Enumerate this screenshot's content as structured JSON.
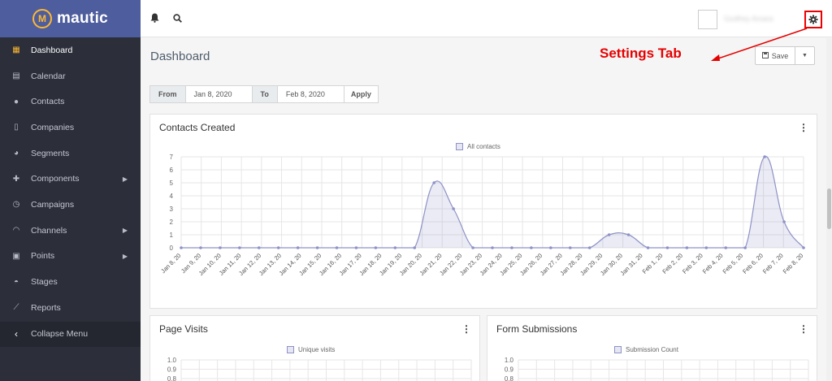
{
  "brand": {
    "name": "mautic"
  },
  "sidebar": {
    "items": [
      {
        "label": "Dashboard",
        "icon": "dashboard-icon",
        "active": true
      },
      {
        "label": "Calendar",
        "icon": "calendar-icon"
      },
      {
        "label": "Contacts",
        "icon": "user-icon"
      },
      {
        "label": "Companies",
        "icon": "building-icon"
      },
      {
        "label": "Segments",
        "icon": "pie-icon"
      },
      {
        "label": "Components",
        "icon": "puzzle-icon",
        "has_children": true
      },
      {
        "label": "Campaigns",
        "icon": "clock-icon"
      },
      {
        "label": "Channels",
        "icon": "rss-icon",
        "has_children": true
      },
      {
        "label": "Points",
        "icon": "calculator-icon",
        "has_children": true
      },
      {
        "label": "Stages",
        "icon": "tachometer-icon"
      },
      {
        "label": "Reports",
        "icon": "line-chart-icon"
      }
    ],
    "collapse_label": "Collapse Menu"
  },
  "topbar": {
    "username": "Godfrey Amara",
    "icons": [
      "bell-icon",
      "search-icon",
      "gear-icon"
    ]
  },
  "page": {
    "title": "Dashboard",
    "annotation": "Settings Tab",
    "save_label": "Save"
  },
  "date_filter": {
    "from_label": "From",
    "from_value": "Jan 8, 2020",
    "to_label": "To",
    "to_value": "Feb 8, 2020",
    "apply_label": "Apply"
  },
  "widgets": {
    "contacts": {
      "title": "Contacts Created",
      "legend": "All contacts"
    },
    "visits": {
      "title": "Page Visits",
      "legend": "Unique visits"
    },
    "forms": {
      "title": "Form Submissions",
      "legend": "Submission Count"
    }
  },
  "colors": {
    "sidebar": "#2c2f3a",
    "brand": "#4e5d9d",
    "accent": "#fdb933",
    "series": "#8e92c6",
    "annotation": "#e60000"
  },
  "chart_data": [
    {
      "type": "area",
      "title": "Contacts Created",
      "series": [
        {
          "name": "All contacts",
          "values": [
            0,
            0,
            0,
            0,
            0,
            0,
            0,
            0,
            0,
            0,
            0,
            0,
            0,
            5,
            3,
            0,
            0,
            0,
            0,
            0,
            0,
            0,
            1,
            1,
            0,
            0,
            0,
            0,
            0,
            0,
            7,
            2,
            0
          ]
        }
      ],
      "x": [
        "Jan 8, 20",
        "Jan 9, 20",
        "Jan 10, 20",
        "Jan 11, 20",
        "Jan 12, 20",
        "Jan 13, 20",
        "Jan 14, 20",
        "Jan 15, 20",
        "Jan 16, 20",
        "Jan 17, 20",
        "Jan 18, 20",
        "Jan 19, 20",
        "Jan 20, 20",
        "Jan 20, 20",
        "Jan 21, 20",
        "Jan 22, 20",
        "Jan 23, 20",
        "Jan 24, 20",
        "Jan 25, 20",
        "Jan 26, 20",
        "Jan 27, 20",
        "Jan 28, 20",
        "Jan 28, 20",
        "Jan 29, 20",
        "Jan 30, 20",
        "Jan 31, 20",
        "Feb 1, 20",
        "Feb 2, 20",
        "Feb 3, 20",
        "Feb 4, 20",
        "Feb 6, 20",
        "Feb 7, 20",
        "Feb 8, 20"
      ],
      "x_labels": [
        "Jan 8, 20",
        "Jan 9, 20",
        "Jan 10, 20",
        "Jan 11, 20",
        "Jan 12, 20",
        "Jan 13, 20",
        "Jan 14, 20",
        "Jan 15, 20",
        "Jan 16, 20",
        "Jan 17, 20",
        "Jan 18, 20",
        "Jan 19, 20",
        "Jan 20, 20",
        "Jan 21, 20",
        "Jan 22, 20",
        "Jan 23, 20",
        "Jan 24, 20",
        "Jan 25, 20",
        "Jan 26, 20",
        "Jan 27, 20",
        "Jan 28, 20",
        "Jan 29, 20",
        "Jan 30, 20",
        "Jan 31, 20",
        "Feb 1, 20",
        "Feb 2, 20",
        "Feb 3, 20",
        "Feb 4, 20",
        "Feb 5, 20",
        "Feb 6, 20",
        "Feb 7, 20",
        "Feb 8, 20"
      ],
      "yticks": [
        "0",
        "1",
        "2",
        "3",
        "4",
        "5",
        "6",
        "7"
      ],
      "ylim": [
        0,
        7
      ],
      "grid": true,
      "legend": "top-center"
    },
    {
      "type": "line",
      "title": "Page Visits",
      "series": [
        {
          "name": "Unique visits",
          "values": []
        }
      ],
      "yticks_visible": [
        "1.0",
        "0.9",
        "0.8"
      ],
      "ylim": [
        0,
        1
      ]
    },
    {
      "type": "line",
      "title": "Form Submissions",
      "series": [
        {
          "name": "Submission Count",
          "values": []
        }
      ],
      "yticks_visible": [
        "1.0",
        "0.9",
        "0.8"
      ],
      "ylim": [
        0,
        1
      ]
    }
  ]
}
